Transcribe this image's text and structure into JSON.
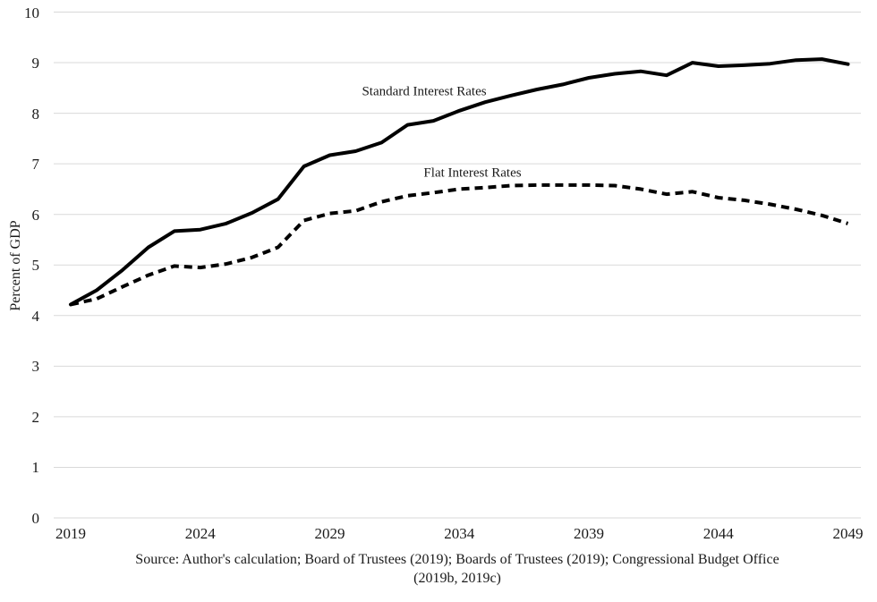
{
  "chart_data": {
    "type": "line",
    "title": "",
    "xlabel": "",
    "ylabel": "Percent of GDP",
    "xlim": [
      2019,
      2049
    ],
    "ylim": [
      0,
      10
    ],
    "grid": true,
    "legend_position": "inline-annotations",
    "x": [
      2019,
      2020,
      2021,
      2022,
      2023,
      2024,
      2025,
      2026,
      2027,
      2028,
      2029,
      2030,
      2031,
      2032,
      2033,
      2034,
      2035,
      2036,
      2037,
      2038,
      2039,
      2040,
      2041,
      2042,
      2043,
      2044,
      2045,
      2046,
      2047,
      2048,
      2049
    ],
    "xticks": [
      2019,
      2024,
      2029,
      2034,
      2039,
      2044,
      2049
    ],
    "yticks": [
      0,
      1,
      2,
      3,
      4,
      5,
      6,
      7,
      8,
      9,
      10
    ],
    "series": [
      {
        "name": "Standard Interest Rates",
        "style": "solid",
        "values": [
          4.22,
          4.5,
          4.9,
          5.35,
          5.67,
          5.7,
          5.82,
          6.03,
          6.3,
          6.95,
          7.17,
          7.25,
          7.42,
          7.77,
          7.85,
          8.05,
          8.22,
          8.35,
          8.47,
          8.57,
          8.7,
          8.78,
          8.83,
          8.75,
          9.0,
          8.93,
          8.95,
          8.98,
          9.05,
          9.07,
          8.97
        ]
      },
      {
        "name": "Flat Interest Rates",
        "style": "dashed",
        "values": [
          4.22,
          4.33,
          4.57,
          4.8,
          4.98,
          4.95,
          5.02,
          5.15,
          5.35,
          5.88,
          6.02,
          6.07,
          6.25,
          6.37,
          6.43,
          6.5,
          6.53,
          6.57,
          6.58,
          6.58,
          6.58,
          6.57,
          6.5,
          6.4,
          6.45,
          6.33,
          6.28,
          6.2,
          6.1,
          5.98,
          5.82
        ]
      }
    ]
  },
  "source_note": {
    "line1": "Source: Author's calculation; Board of Trustees (2019); Boards of Trustees (2019); Congressional Budget Office",
    "line2": "(2019b, 2019c)"
  },
  "colors": {
    "line": "#000000",
    "grid": "#d9d9d9",
    "text": "#1a1a1a",
    "background": "#ffffff"
  }
}
